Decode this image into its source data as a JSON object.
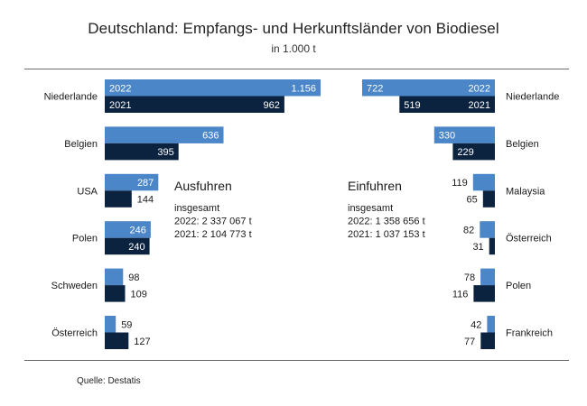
{
  "title": "Deutschland: Empfangs- und Herkunftsländer von Biodiesel",
  "subtitle": "in 1.000 t",
  "source": "Quelle:  Destatis",
  "colors": {
    "y2022": "#4a86c8",
    "y2021": "#0c2340",
    "text_on_bar": "#ffffff",
    "text": "#1a1a1a"
  },
  "chart_data": [
    {
      "type": "bar",
      "orientation": "horizontal",
      "direction": "right",
      "title": "Ausfuhren",
      "subtitle_lines": [
        "insgesamt",
        "2022: 2 337 067 t",
        "2021: 2 104 773 t"
      ],
      "categories": [
        "Niederlande",
        "Belgien",
        "USA",
        "Polen",
        "Schweden",
        "Österreich"
      ],
      "series": [
        {
          "name": "2022",
          "values": [
            1156,
            636,
            287,
            246,
            98,
            59
          ]
        },
        {
          "name": "2021",
          "values": [
            962,
            395,
            144,
            240,
            109,
            127
          ]
        }
      ],
      "value_labels": {
        "2022": [
          "1.156",
          "636",
          "287",
          "246",
          "98",
          "59"
        ],
        "2021": [
          "962",
          "395",
          "144",
          "240",
          "109",
          "127"
        ]
      },
      "series_inline_labels": {
        "2022": "2022",
        "2021": "2021"
      },
      "unit": "1.000 t",
      "xlim": [
        0,
        1156
      ]
    },
    {
      "type": "bar",
      "orientation": "horizontal",
      "direction": "left",
      "title": "Einfuhren",
      "subtitle_lines": [
        "insgesamt",
        "2022: 1 358 656 t",
        "2021: 1 037 153 t"
      ],
      "categories": [
        "Niederlande",
        "Belgien",
        "Malaysia",
        "Österreich",
        "Polen",
        "Frankreich"
      ],
      "series": [
        {
          "name": "2022",
          "values": [
            722,
            330,
            119,
            82,
            78,
            42
          ]
        },
        {
          "name": "2021",
          "values": [
            519,
            229,
            65,
            31,
            116,
            77
          ]
        }
      ],
      "value_labels": {
        "2022": [
          "722",
          "330",
          "119",
          "82",
          "78",
          "42"
        ],
        "2021": [
          "519",
          "229",
          "65",
          "31",
          "116",
          "77"
        ]
      },
      "series_inline_labels": {
        "2022": "2022",
        "2021": "2021"
      },
      "unit": "1.000 t",
      "xlim": [
        0,
        722
      ]
    }
  ]
}
